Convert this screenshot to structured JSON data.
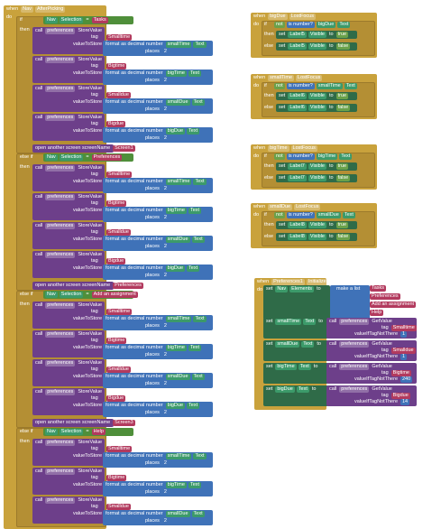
{
  "nav_after_picking": {
    "when": "when",
    "component": "Nav",
    "event": "AfterPicking",
    "do": "do",
    "branches": [
      {
        "keyword": "if",
        "then": "then",
        "condition": {
          "component": "Nav",
          "property": "Selection",
          "operator": "=",
          "value": "Tasks"
        },
        "stores": [
          {
            "call": "call",
            "component": "preferences",
            "method": "StoreValue",
            "tag_label": "tag",
            "tag": "Smalltime",
            "value_label": "valueToStore",
            "format": "format as decimal number",
            "number_component": "smallTime",
            "number_property": "Text",
            "places_label": "places",
            "places": 2
          },
          {
            "call": "call",
            "component": "preferences",
            "method": "StoreValue",
            "tag_label": "tag",
            "tag": "Bigtime",
            "value_label": "valueToStore",
            "format": "format as decimal number",
            "number_component": "bigTime",
            "number_property": "Text",
            "places_label": "places",
            "places": 2
          },
          {
            "call": "call",
            "component": "preferences",
            "method": "StoreValue",
            "tag_label": "tag",
            "tag": "Smalldue",
            "value_label": "valueToStore",
            "format": "format as decimal number",
            "number_component": "smallDue",
            "number_property": "Text",
            "places_label": "places",
            "places": 2
          },
          {
            "call": "call",
            "component": "preferences",
            "method": "StoreValue",
            "tag_label": "tag",
            "tag": "Bigdue",
            "value_label": "valueToStore",
            "format": "format as decimal number",
            "number_component": "bigDue",
            "number_property": "Text",
            "places_label": "places",
            "places": 2
          }
        ],
        "open_screen": {
          "label": "open another screen  screenName",
          "screen": "Screen1"
        }
      },
      {
        "keyword": "else if",
        "then": "then",
        "condition": {
          "component": "Nav",
          "property": "Selection",
          "operator": "=",
          "value": "Preferences"
        },
        "stores": [
          {
            "call": "call",
            "component": "preferences",
            "method": "StoreValue",
            "tag_label": "tag",
            "tag": "Smalltime",
            "value_label": "valueToStore",
            "format": "format as decimal number",
            "number_component": "smallTime",
            "number_property": "Text",
            "places_label": "places",
            "places": 2
          },
          {
            "call": "call",
            "component": "preferences",
            "method": "StoreValue",
            "tag_label": "tag",
            "tag": "Bigtime",
            "value_label": "valueToStore",
            "format": "format as decimal number",
            "number_component": "bigTime",
            "number_property": "Text",
            "places_label": "places",
            "places": 2
          },
          {
            "call": "call",
            "component": "preferences",
            "method": "StoreValue",
            "tag_label": "tag",
            "tag": "Smalldue",
            "value_label": "valueToStore",
            "format": "format as decimal number",
            "number_component": "smallDue",
            "number_property": "Text",
            "places_label": "places",
            "places": 2
          },
          {
            "call": "call",
            "component": "preferences",
            "method": "StoreValue",
            "tag_label": "tag",
            "tag": "Bigdue",
            "value_label": "valueToStore",
            "format": "format as decimal number",
            "number_component": "bigDue",
            "number_property": "Text",
            "places_label": "places",
            "places": 2
          }
        ],
        "open_screen": {
          "label": "open another screen  screenName",
          "screen": "Preferences"
        }
      },
      {
        "keyword": "else if",
        "then": "then",
        "condition": {
          "component": "Nav",
          "property": "Selection",
          "operator": "=",
          "value": "Add an assignment"
        },
        "stores": [
          {
            "call": "call",
            "component": "preferences",
            "method": "StoreValue",
            "tag_label": "tag",
            "tag": "Smalltime",
            "value_label": "valueToStore",
            "format": "format as decimal number",
            "number_component": "smallTime",
            "number_property": "Text",
            "places_label": "places",
            "places": 2
          },
          {
            "call": "call",
            "component": "preferences",
            "method": "StoreValue",
            "tag_label": "tag",
            "tag": "Bigtime",
            "value_label": "valueToStore",
            "format": "format as decimal number",
            "number_component": "bigTime",
            "number_property": "Text",
            "places_label": "places",
            "places": 2
          },
          {
            "call": "call",
            "component": "preferences",
            "method": "StoreValue",
            "tag_label": "tag",
            "tag": "Smalldue",
            "value_label": "valueToStore",
            "format": "format as decimal number",
            "number_component": "smallDue",
            "number_property": "Text",
            "places_label": "places",
            "places": 2
          },
          {
            "call": "call",
            "component": "preferences",
            "method": "StoreValue",
            "tag_label": "tag",
            "tag": "Bigdue",
            "value_label": "valueToStore",
            "format": "format as decimal number",
            "number_component": "bigDue",
            "number_property": "Text",
            "places_label": "places",
            "places": 2
          }
        ],
        "open_screen": {
          "label": "open another screen  screenName",
          "screen": "Screen3"
        }
      },
      {
        "keyword": "else if",
        "then": "then",
        "condition": {
          "component": "Nav",
          "property": "Selection",
          "operator": "=",
          "value": "Help"
        },
        "stores": [
          {
            "call": "call",
            "component": "preferences",
            "method": "StoreValue",
            "tag_label": "tag",
            "tag": "Smalltime",
            "value_label": "valueToStore",
            "format": "format as decimal number",
            "number_component": "smallTime",
            "number_property": "Text",
            "places_label": "places",
            "places": 2
          },
          {
            "call": "call",
            "component": "preferences",
            "method": "StoreValue",
            "tag_label": "tag",
            "tag": "Bigtime",
            "value_label": "valueToStore",
            "format": "format as decimal number",
            "number_component": "bigTime",
            "number_property": "Text",
            "places_label": "places",
            "places": 2
          },
          {
            "call": "call",
            "component": "preferences",
            "method": "StoreValue",
            "tag_label": "tag",
            "tag": "Smalldue",
            "value_label": "valueToStore",
            "format": "format as decimal number",
            "number_component": "smallDue",
            "number_property": "Text",
            "places_label": "places",
            "places": 2
          }
        ]
      }
    ]
  },
  "lost_focus_handlers": [
    {
      "when": "when",
      "component": "bigDue",
      "event": "LostFocus",
      "do": "do",
      "if": "if",
      "not": "not",
      "is_number": "is number?",
      "number_component": "bigDue",
      "number_property": "Text",
      "then": "then",
      "then_set": {
        "set": "set",
        "component": "Label5",
        "property": "Visible",
        "to": "to",
        "value": "true"
      },
      "else": "else",
      "else_set": {
        "set": "set",
        "component": "Label5",
        "property": "Visible",
        "to": "to",
        "value": "false"
      }
    },
    {
      "when": "when",
      "component": "smallTime",
      "event": "LostFocus",
      "do": "do",
      "if": "if",
      "not": "not",
      "is_number": "is number?",
      "number_component": "smallTime",
      "number_property": "Text",
      "then": "then",
      "then_set": {
        "set": "set",
        "component": "Label6",
        "property": "Visible",
        "to": "to",
        "value": "true"
      },
      "else": "else",
      "else_set": {
        "set": "set",
        "component": "Label6",
        "property": "Visible",
        "to": "to",
        "value": "false"
      }
    },
    {
      "when": "when",
      "component": "bigTime",
      "event": "LostFocus",
      "do": "do",
      "if": "if",
      "not": "not",
      "is_number": "is number?",
      "number_component": "bigTime",
      "number_property": "Text",
      "then": "then",
      "then_set": {
        "set": "set",
        "component": "Label7",
        "property": "Visible",
        "to": "to",
        "value": "true"
      },
      "else": "else",
      "else_set": {
        "set": "set",
        "component": "Label7",
        "property": "Visible",
        "to": "to",
        "value": "false"
      }
    },
    {
      "when": "when",
      "component": "smallDue",
      "event": "LostFocus",
      "do": "do",
      "if": "if",
      "not": "not",
      "is_number": "is number?",
      "number_component": "smallDue",
      "number_property": "Text",
      "then": "then",
      "then_set": {
        "set": "set",
        "component": "Label8",
        "property": "Visible",
        "to": "to",
        "value": "true"
      },
      "else": "else",
      "else_set": {
        "set": "set",
        "component": "Label8",
        "property": "Visible",
        "to": "to",
        "value": "false"
      }
    }
  ],
  "initialize": {
    "when": "when",
    "component": "Preferences1",
    "event": "Initialize",
    "do": "do",
    "set_list": {
      "set": "set",
      "component": "Nav",
      "property": "Elements",
      "to": "to",
      "make_list": "make a list",
      "items": [
        "Tasks",
        "Preferences",
        "Add an assignment",
        "Help"
      ]
    },
    "get_values": [
      {
        "set": "set",
        "component": "smallTime",
        "property": "Text",
        "to": "to",
        "call": "call",
        "prefs": "preferences",
        "method": "GetValue",
        "tag_label": "tag",
        "tag": "Smalltime",
        "default_label": "valueIfTagNotThere",
        "default": 1
      },
      {
        "set": "set",
        "component": "smallDue",
        "property": "Text",
        "to": "to",
        "call": "call",
        "prefs": "preferences",
        "method": "GetValue",
        "tag_label": "tag",
        "tag": "Smalldue",
        "default_label": "valueIfTagNotThere",
        "default": 1
      },
      {
        "set": "set",
        "component": "bigTime",
        "property": "Text",
        "to": "to",
        "call": "call",
        "prefs": "preferences",
        "method": "GetValue",
        "tag_label": "tag",
        "tag": "Bigtime",
        "default_label": "valueIfTagNotThere",
        "default": 240
      },
      {
        "set": "set",
        "component": "bigDue",
        "property": "Text",
        "to": "to",
        "call": "call",
        "prefs": "preferences",
        "method": "GetValue",
        "tag_label": "tag",
        "tag": "Bigdue",
        "default_label": "valueIfTagNotThere",
        "default": 14
      }
    ]
  }
}
